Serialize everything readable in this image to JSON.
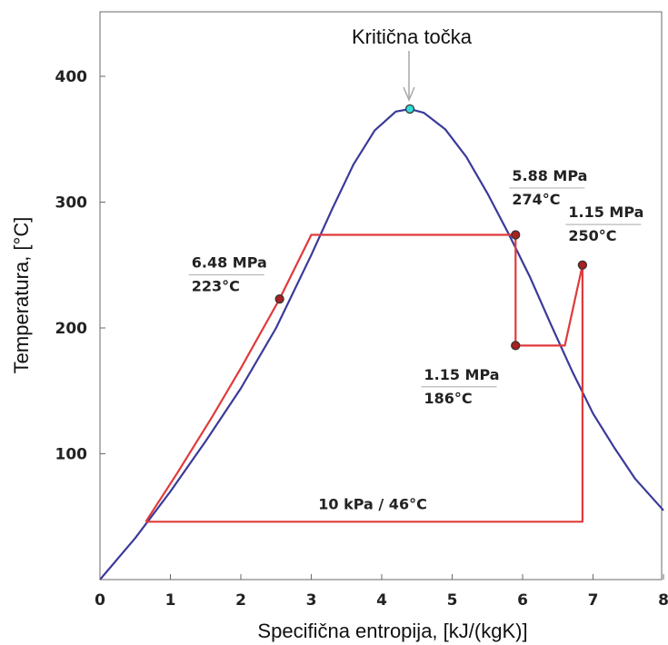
{
  "chart_data": {
    "type": "line",
    "xlabel": "Specifična entropija, [kJ/(kgK)]",
    "ylabel": "Temperatura, [°C]",
    "xlim": [
      0,
      8
    ],
    "ylim": [
      0,
      450
    ],
    "xticks": [
      0,
      1,
      2,
      3,
      4,
      5,
      6,
      7,
      8
    ],
    "yticks": [
      100,
      200,
      300,
      400
    ],
    "grid": false,
    "series": [
      {
        "role": "saturation-dome",
        "color": "#3a3a9a",
        "x": [
          0,
          0.5,
          1.0,
          1.5,
          2.0,
          2.5,
          3.0,
          3.3,
          3.6,
          3.9,
          4.2,
          4.4,
          4.6,
          4.9,
          5.2,
          5.5,
          5.8,
          6.1,
          6.4,
          6.7,
          7.0,
          7.3,
          7.6,
          8.0
        ],
        "y": [
          0,
          33,
          70,
          110,
          152,
          200,
          258,
          295,
          330,
          357,
          372,
          374,
          371,
          358,
          336,
          307,
          275,
          241,
          203,
          166,
          132,
          105,
          80,
          55
        ]
      },
      {
        "role": "rankine-cycle",
        "color": "#e03a3a",
        "x": [
          0.65,
          1.1,
          1.6,
          2.0,
          2.55,
          3.0,
          5.9,
          5.9,
          6.6,
          6.85,
          6.85,
          0.65
        ],
        "y": [
          46,
          85,
          130,
          168,
          223,
          274,
          274,
          186,
          186,
          250,
          46,
          46
        ]
      }
    ],
    "points": [
      {
        "x": 2.55,
        "y": 223,
        "color": "#a82020"
      },
      {
        "x": 5.9,
        "y": 274,
        "color": "#a82020"
      },
      {
        "x": 5.9,
        "y": 186,
        "color": "#a82020"
      },
      {
        "x": 6.85,
        "y": 250,
        "color": "#a82020"
      },
      {
        "x": 4.4,
        "y": 374,
        "color": "#33dddd"
      }
    ],
    "annotations": [
      {
        "lines": [
          "6.48 MPa",
          "223°C"
        ],
        "x": 1.3,
        "y": 248
      },
      {
        "lines": [
          "5.88 MPa",
          "274°C"
        ],
        "x": 5.85,
        "y": 317
      },
      {
        "lines": [
          "1.15 MPa",
          "250°C"
        ],
        "x": 6.65,
        "y": 288
      },
      {
        "lines": [
          "1.15 MPa",
          "186°C"
        ],
        "x": 4.6,
        "y": 159
      },
      {
        "lines": [
          "10 kPa / 46°C"
        ],
        "x": 3.1,
        "y": 56
      }
    ],
    "critical_point_label": "Kritična točka"
  }
}
